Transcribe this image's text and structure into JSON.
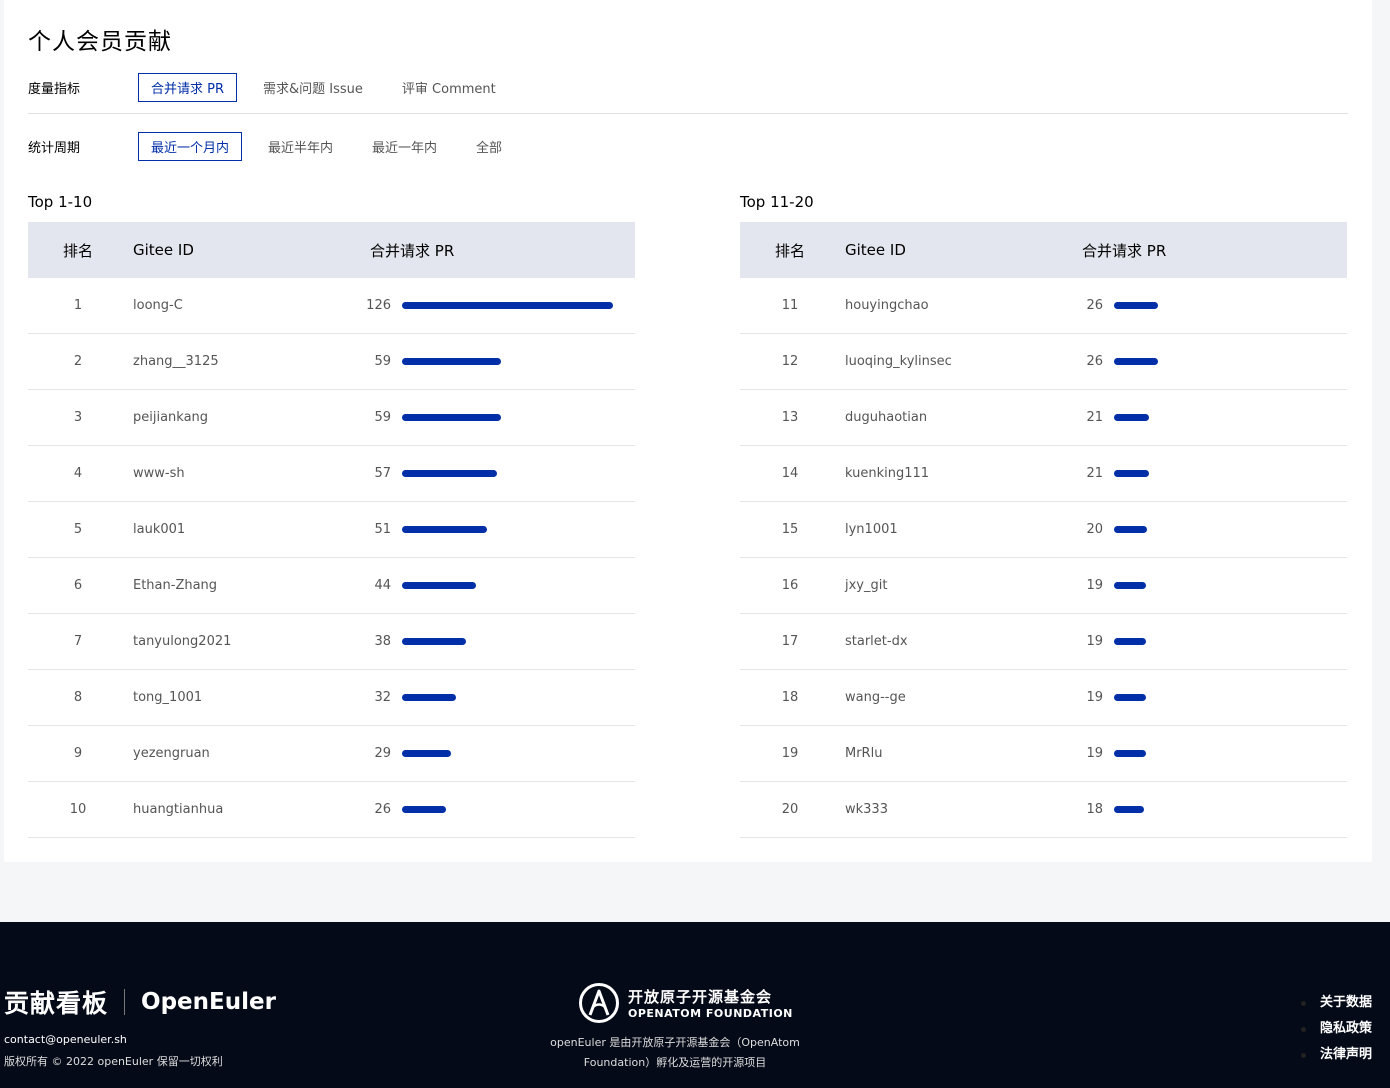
{
  "page": {
    "title": "个人会员贡献"
  },
  "filters": {
    "metric": {
      "label": "度量指标",
      "options": [
        "合并请求 PR",
        "需求&问题 Issue",
        "评审 Comment"
      ],
      "active": 0
    },
    "period": {
      "label": "统计周期",
      "options": [
        "最近一个月内",
        "最近半年内",
        "最近一年内",
        "全部"
      ],
      "active": 0
    }
  },
  "tables": {
    "left": {
      "caption": "Top 1-10",
      "headers": [
        "排名",
        "Gitee ID",
        "合并请求 PR"
      ],
      "rows": [
        {
          "rank": "1",
          "id": "loong-C",
          "value": "126"
        },
        {
          "rank": "2",
          "id": "zhang__3125",
          "value": "59"
        },
        {
          "rank": "3",
          "id": "peijiankang",
          "value": "59"
        },
        {
          "rank": "4",
          "id": "www-sh",
          "value": "57"
        },
        {
          "rank": "5",
          "id": "lauk001",
          "value": "51"
        },
        {
          "rank": "6",
          "id": "Ethan-Zhang",
          "value": "44"
        },
        {
          "rank": "7",
          "id": "tanyulong2021",
          "value": "38"
        },
        {
          "rank": "8",
          "id": "tong_1001",
          "value": "32"
        },
        {
          "rank": "9",
          "id": "yezengruan",
          "value": "29"
        },
        {
          "rank": "10",
          "id": "huangtianhua",
          "value": "26"
        }
      ]
    },
    "right": {
      "caption": "Top 11-20",
      "headers": [
        "排名",
        "Gitee ID",
        "合并请求 PR"
      ],
      "rows": [
        {
          "rank": "11",
          "id": "houyingchao",
          "value": "26"
        },
        {
          "rank": "12",
          "id": "luoqing_kylinsec",
          "value": "26"
        },
        {
          "rank": "13",
          "id": "duguhaotian",
          "value": "21"
        },
        {
          "rank": "14",
          "id": "kuenking111",
          "value": "21"
        },
        {
          "rank": "15",
          "id": "lyn1001",
          "value": "20"
        },
        {
          "rank": "16",
          "id": "jxy_git",
          "value": "19"
        },
        {
          "rank": "17",
          "id": "starlet-dx",
          "value": "19"
        },
        {
          "rank": "18",
          "id": "wang--ge",
          "value": "19"
        },
        {
          "rank": "19",
          "id": "MrRlu",
          "value": "19"
        },
        {
          "rank": "20",
          "id": "wk333",
          "value": "18"
        }
      ]
    },
    "bar_max": 126,
    "bar_color": "#002fa7"
  },
  "footer": {
    "brand_cn": "贡献看板",
    "brand_en": "OpenEuler",
    "contact": "contact@openeuler.sh",
    "copyright": "版权所有 © 2022 openEuler 保留一切权利",
    "foundation_cn": "开放原子开源基金会",
    "foundation_en": "OPENATOM FOUNDATION",
    "foundation_desc": "openEuler 是由开放原子开源基金会（OpenAtom Foundation）孵化及运营的开源项目",
    "links": [
      "关于数据",
      "隐私政策",
      "法律声明"
    ]
  }
}
